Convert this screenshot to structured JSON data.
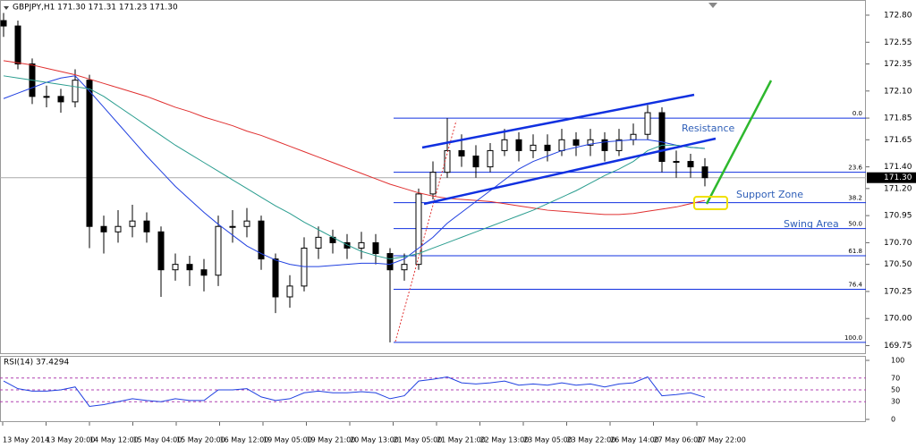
{
  "header": "GBPJPY,H1  171.30 171.31 171.23 171.30",
  "chart_data": {
    "type": "candlestick",
    "ylim": [
      169.68,
      172.94
    ],
    "yticks": [
      {
        "value": 172.8,
        "label": "172.80"
      },
      {
        "value": 172.55,
        "label": "172.55"
      },
      {
        "value": 172.35,
        "label": "172.35"
      },
      {
        "value": 172.1,
        "label": "172.10"
      },
      {
        "value": 171.85,
        "label": "171.85"
      },
      {
        "value": 171.65,
        "label": "171.65"
      },
      {
        "value": 171.4,
        "label": "171.40"
      },
      {
        "value": 171.2,
        "label": "171.20"
      },
      {
        "value": 170.95,
        "label": "170.95"
      },
      {
        "value": 170.7,
        "label": "170.70"
      },
      {
        "value": 170.5,
        "label": "170.50"
      },
      {
        "value": 170.25,
        "label": "170.25"
      },
      {
        "value": 170,
        "label": "170.00"
      },
      {
        "value": 169.75,
        "label": "169.75"
      }
    ],
    "price_tag": {
      "value": 171.3,
      "label": "171.30"
    },
    "x_labels": [
      "13 May 2014",
      "13 May 20:00",
      "14 May 12:00",
      "15 May 04:00",
      "15 May 20:00",
      "16 May 12:00",
      "19 May 05:00",
      "19 May 21:00",
      "20 May 13:00",
      "21 May 05:00",
      "21 May 21:00",
      "22 May 13:00",
      "23 May 05:00",
      "23 May 22:00",
      "26 May 14:00",
      "27 May 06:00",
      "27 May 22:00"
    ],
    "open": [
      172.75,
      172.7,
      172.35,
      172.05,
      172.05,
      172.0,
      172.2,
      170.85,
      170.8,
      170.85,
      170.9,
      170.8,
      170.45,
      170.5,
      170.45,
      170.4,
      170.85,
      170.85,
      170.9,
      170.55,
      170.2,
      170.3,
      170.65,
      170.75,
      170.7,
      170.65,
      170.7,
      170.6,
      170.45,
      170.5,
      171.15,
      171.35,
      171.55,
      171.5,
      171.4,
      171.55,
      171.65,
      171.55,
      171.6,
      171.55,
      171.65,
      171.6,
      171.65,
      171.55,
      171.65,
      171.7,
      171.9,
      171.45,
      171.45,
      171.4
    ],
    "high": [
      172.82,
      172.75,
      172.4,
      172.15,
      172.12,
      172.3,
      172.25,
      170.95,
      171.0,
      171.05,
      170.98,
      170.85,
      170.6,
      170.58,
      170.55,
      170.95,
      171.0,
      171.02,
      170.95,
      170.6,
      170.4,
      170.75,
      170.85,
      170.82,
      170.78,
      170.8,
      170.78,
      170.65,
      170.6,
      171.2,
      171.45,
      171.85,
      171.7,
      171.6,
      171.62,
      171.75,
      171.72,
      171.7,
      171.7,
      171.75,
      171.72,
      171.75,
      171.72,
      171.75,
      171.8,
      171.97,
      171.95,
      171.55,
      171.52,
      171.48
    ],
    "low": [
      172.6,
      172.3,
      171.98,
      171.95,
      171.9,
      171.95,
      170.65,
      170.6,
      170.7,
      170.75,
      170.7,
      170.2,
      170.35,
      170.3,
      170.25,
      170.3,
      170.7,
      170.75,
      170.45,
      170.05,
      170.1,
      170.25,
      170.55,
      170.6,
      170.55,
      170.55,
      170.5,
      169.78,
      170.35,
      170.45,
      171.1,
      171.3,
      171.4,
      171.3,
      171.35,
      171.5,
      171.45,
      171.48,
      171.45,
      171.5,
      171.5,
      171.5,
      171.45,
      171.5,
      171.6,
      171.65,
      171.35,
      171.3,
      171.3,
      171.22
    ],
    "close": [
      172.7,
      172.35,
      172.05,
      172.05,
      172.0,
      172.2,
      170.85,
      170.8,
      170.85,
      170.9,
      170.8,
      170.45,
      170.5,
      170.45,
      170.4,
      170.85,
      170.85,
      170.9,
      170.55,
      170.2,
      170.3,
      170.65,
      170.75,
      170.7,
      170.65,
      170.7,
      170.6,
      170.45,
      170.5,
      171.15,
      171.35,
      171.55,
      171.5,
      171.4,
      171.55,
      171.65,
      171.55,
      171.6,
      171.55,
      171.65,
      171.6,
      171.65,
      171.55,
      171.65,
      171.7,
      171.9,
      171.45,
      171.45,
      171.4,
      171.3
    ],
    "series": [
      {
        "color": "#e03030",
        "values": [
          172.38,
          172.36,
          172.34,
          172.31,
          172.28,
          172.25,
          172.21,
          172.17,
          172.13,
          172.09,
          172.05,
          172.0,
          171.95,
          171.91,
          171.86,
          171.82,
          171.78,
          171.73,
          171.69,
          171.64,
          171.59,
          171.54,
          171.49,
          171.44,
          171.39,
          171.34,
          171.29,
          171.24,
          171.2,
          171.16,
          171.13,
          171.11,
          171.1,
          171.09,
          171.08,
          171.06,
          171.04,
          171.02,
          171.0,
          170.99,
          170.98,
          170.97,
          170.96,
          170.96,
          170.97,
          170.99,
          171.01,
          171.03,
          171.06,
          171.09
        ]
      },
      {
        "color": "#2040e0",
        "values": [
          172.03,
          172.08,
          172.13,
          172.18,
          172.22,
          172.24,
          172.1,
          171.95,
          171.8,
          171.65,
          171.5,
          171.36,
          171.22,
          171.1,
          170.98,
          170.87,
          170.77,
          170.67,
          170.6,
          170.54,
          170.5,
          170.48,
          170.48,
          170.49,
          170.5,
          170.51,
          170.51,
          170.5,
          170.55,
          170.65,
          170.75,
          170.88,
          170.98,
          171.08,
          171.18,
          171.28,
          171.38,
          171.45,
          171.5,
          171.55,
          171.58,
          171.61,
          171.63,
          171.64,
          171.65,
          171.65,
          171.63,
          171.6,
          171.58,
          171.57
        ]
      },
      {
        "color": "#2a9d8f",
        "values": [
          172.24,
          172.22,
          172.2,
          172.18,
          172.16,
          172.14,
          172.12,
          172.05,
          171.96,
          171.87,
          171.78,
          171.69,
          171.6,
          171.52,
          171.44,
          171.36,
          171.28,
          171.2,
          171.12,
          171.04,
          170.97,
          170.89,
          170.82,
          170.75,
          170.68,
          170.62,
          170.58,
          170.55,
          170.57,
          170.6,
          170.65,
          170.7,
          170.75,
          170.8,
          170.85,
          170.9,
          170.95,
          171.0,
          171.06,
          171.12,
          171.18,
          171.25,
          171.32,
          171.38,
          171.45,
          171.55,
          171.6,
          171.6,
          171.58,
          171.57
        ]
      }
    ],
    "fib_prices": [
      171.85,
      171.35,
      171.07,
      170.83,
      170.58,
      170.27,
      169.78
    ],
    "fib_labels": [
      {
        "value": 0,
        "label": "0.0"
      },
      23.6,
      38.2,
      {
        "value": 50,
        "label": "50.0"
      },
      61.8,
      76.4,
      {
        "value": 100,
        "label": "100.0"
      }
    ],
    "annotations": [
      "Resistance",
      "Support Zone",
      "Swing Area"
    ],
    "rsi": {
      "title": "RSI(14) 37.4294",
      "color": "#2040e0",
      "ylim": [
        0,
        100
      ],
      "yticks": [
        0,
        30,
        50,
        70,
        100
      ],
      "values": [
        65,
        52,
        48,
        48,
        50,
        55,
        22,
        25,
        30,
        35,
        32,
        30,
        35,
        32,
        32,
        50,
        50,
        52,
        38,
        32,
        35,
        45,
        48,
        45,
        45,
        47,
        45,
        35,
        40,
        65,
        68,
        72,
        62,
        60,
        62,
        65,
        58,
        60,
        58,
        62,
        58,
        60,
        55,
        60,
        62,
        72,
        40,
        42,
        45,
        37.4294
      ]
    }
  }
}
